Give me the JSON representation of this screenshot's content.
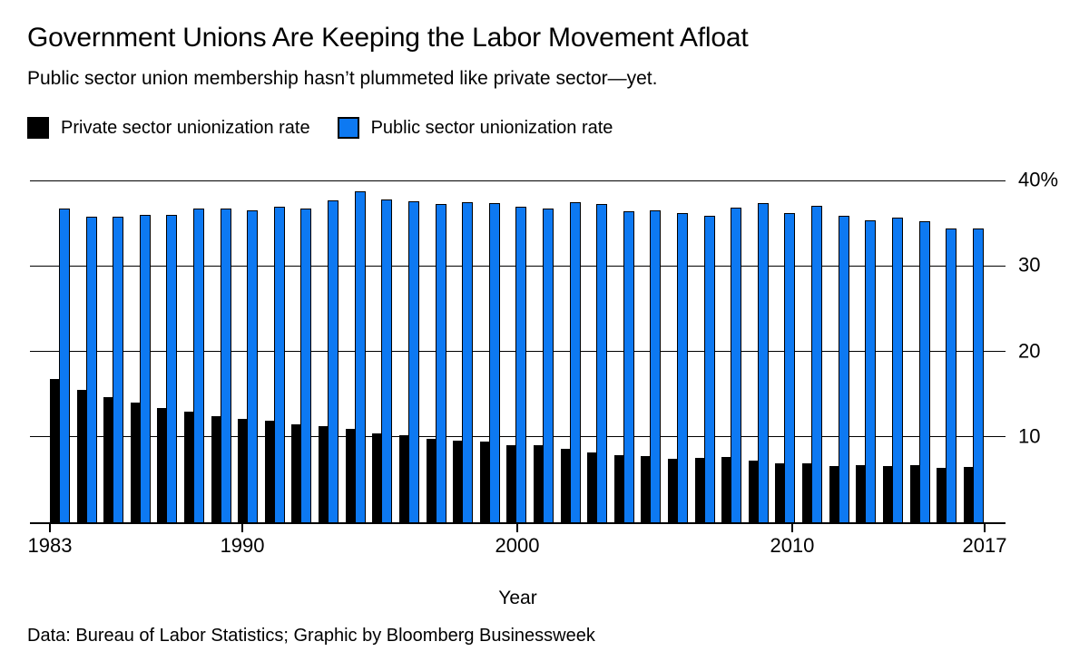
{
  "title": "Government Unions Are Keeping the Labor Movement Afloat",
  "subtitle": "Public sector union membership hasn’t plummeted like private sector—yet.",
  "legend": {
    "private_label": "Private sector unionization rate",
    "public_label": "Public sector unionization rate"
  },
  "colors": {
    "private": "#000000",
    "public": "#0d79f2"
  },
  "chart_data": {
    "type": "bar",
    "title": "Government Unions Are Keeping the Labor Movement Afloat",
    "subtitle": "Public sector union membership hasn’t plummeted like private sector—yet.",
    "xlabel": "Year",
    "ylabel": "",
    "ylim": [
      0,
      40
    ],
    "grid": true,
    "legend_position": "top-left",
    "y_ticks": [
      {
        "value": 40,
        "label": "40%"
      },
      {
        "value": 30,
        "label": "30"
      },
      {
        "value": 20,
        "label": "20"
      },
      {
        "value": 10,
        "label": "10"
      }
    ],
    "x_tick_marks": [
      {
        "year": 1983,
        "label": "1983"
      },
      {
        "year": 1990,
        "label": "1990"
      },
      {
        "year": 2000,
        "label": "2000"
      },
      {
        "year": 2010,
        "label": "2010"
      },
      {
        "year": 2017,
        "label": "2017"
      }
    ],
    "categories": [
      1983,
      1984,
      1985,
      1986,
      1987,
      1988,
      1989,
      1990,
      1991,
      1992,
      1993,
      1994,
      1995,
      1996,
      1997,
      1998,
      1999,
      2000,
      2001,
      2002,
      2003,
      2004,
      2005,
      2006,
      2007,
      2008,
      2009,
      2010,
      2011,
      2012,
      2013,
      2014,
      2015,
      2016,
      2017
    ],
    "series": [
      {
        "name": "Private sector unionization rate",
        "color": "#000000",
        "values": [
          16.8,
          15.5,
          14.6,
          14.0,
          13.4,
          12.9,
          12.4,
          12.1,
          11.9,
          11.5,
          11.2,
          10.9,
          10.4,
          10.2,
          9.8,
          9.5,
          9.4,
          9.0,
          9.0,
          8.6,
          8.2,
          7.9,
          7.8,
          7.4,
          7.5,
          7.6,
          7.2,
          6.9,
          6.9,
          6.6,
          6.7,
          6.6,
          6.7,
          6.4,
          6.5
        ]
      },
      {
        "name": "Public sector unionization rate",
        "color": "#0d79f2",
        "values": [
          36.7,
          35.8,
          35.8,
          36.0,
          36.0,
          36.7,
          36.7,
          36.5,
          36.9,
          36.7,
          37.7,
          38.7,
          37.8,
          37.6,
          37.2,
          37.5,
          37.3,
          36.9,
          36.7,
          37.5,
          37.2,
          36.4,
          36.5,
          36.2,
          35.9,
          36.8,
          37.4,
          36.2,
          37.0,
          35.9,
          35.3,
          35.7,
          35.2,
          34.4,
          34.4
        ]
      }
    ]
  },
  "footer": {
    "caption": "Data: Bureau of Labor Statistics; Graphic by Bloomberg Businessweek"
  }
}
